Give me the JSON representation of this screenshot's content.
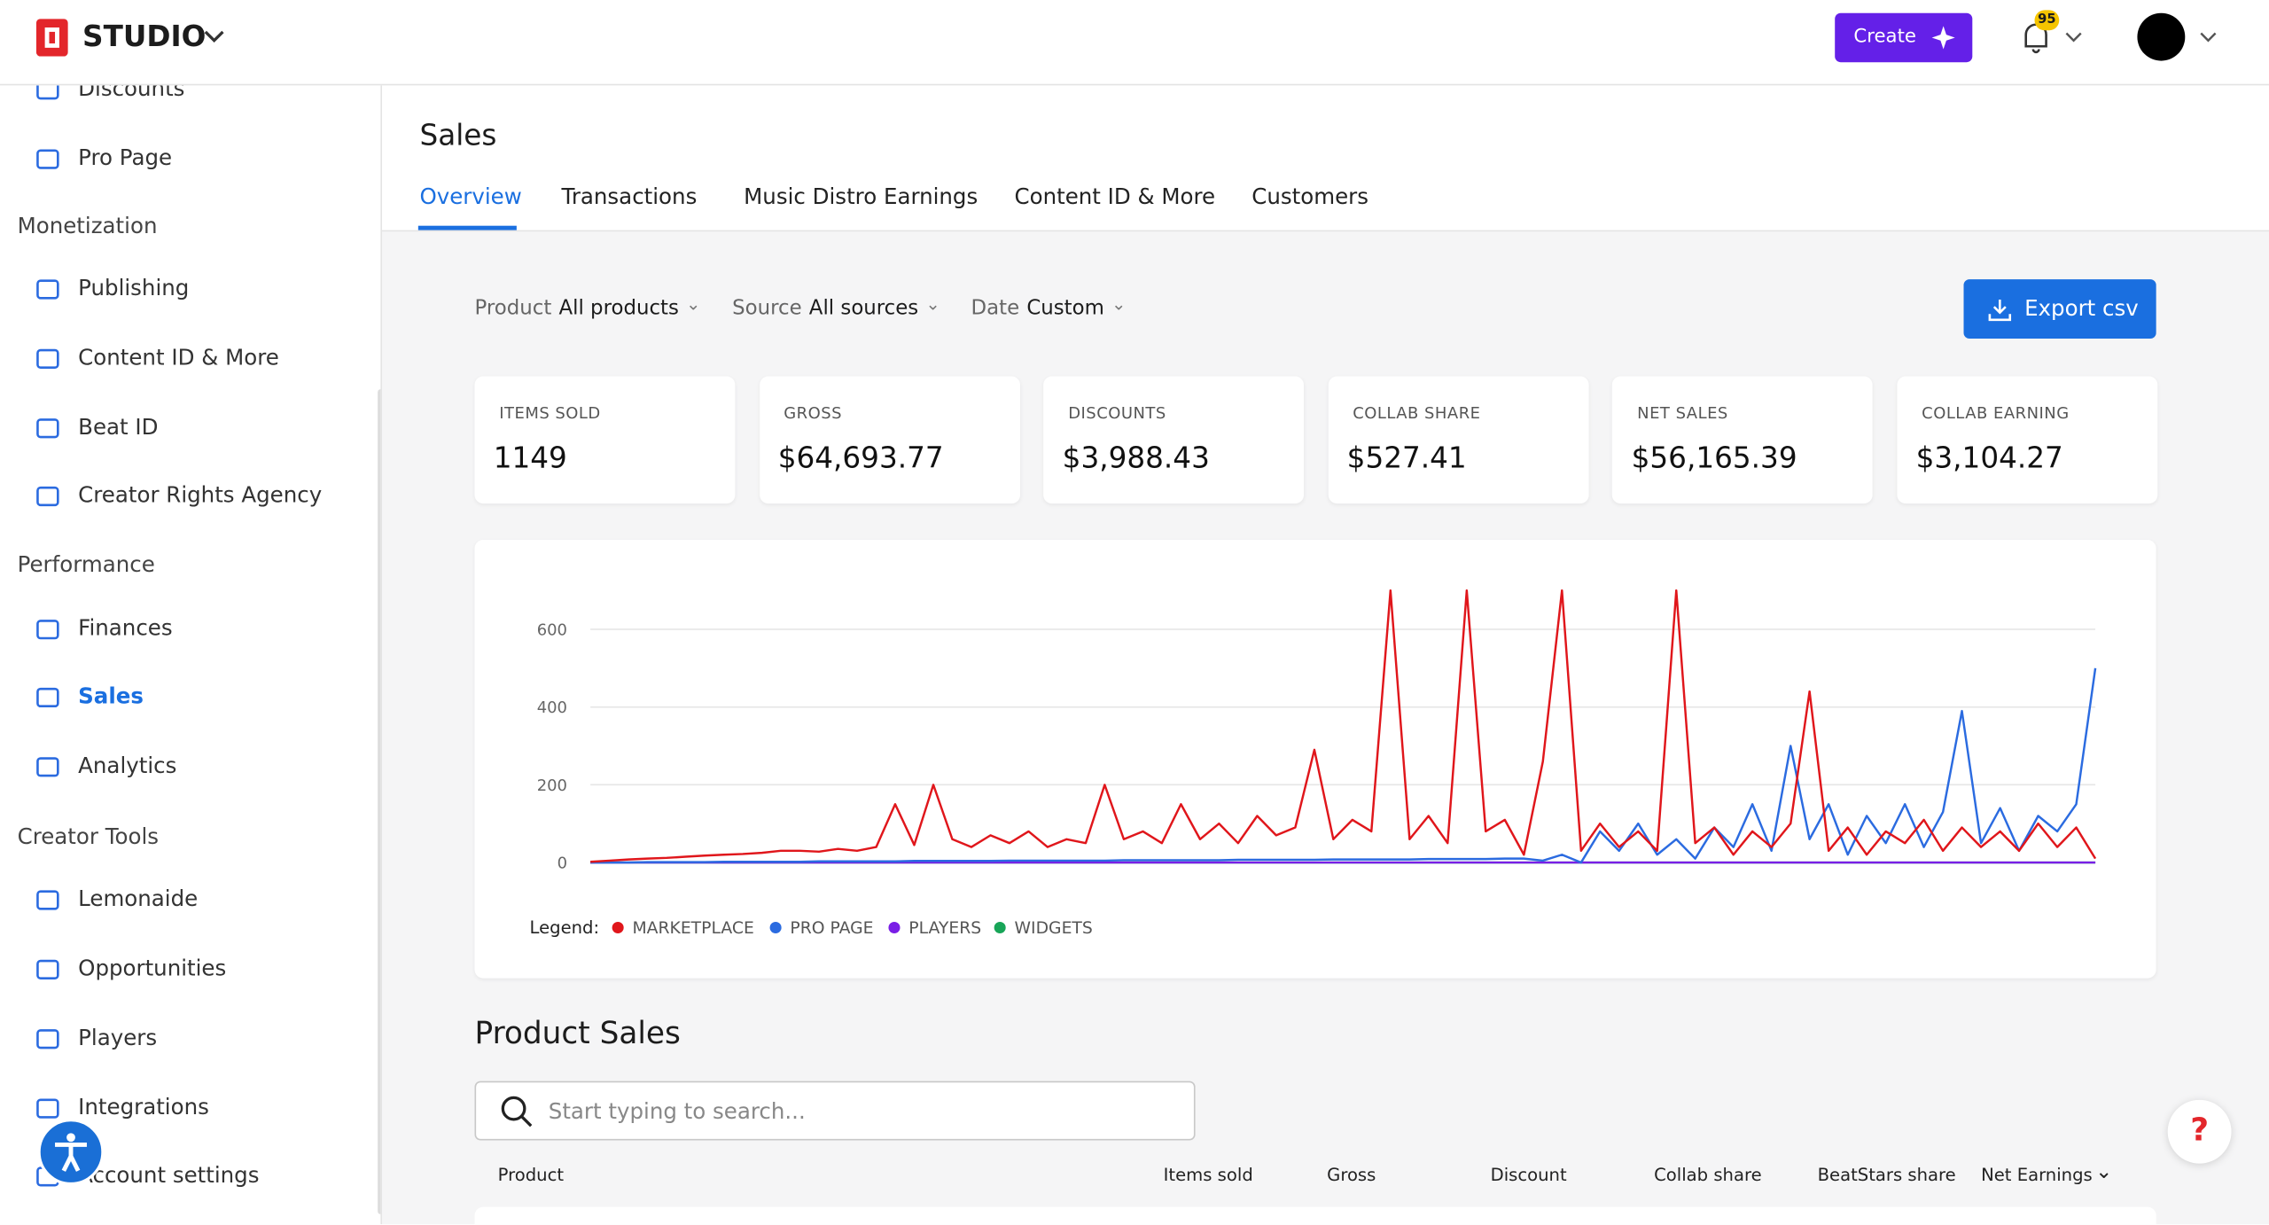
{
  "header": {
    "brand": "STUDIO",
    "create": "Create",
    "notifications": "95"
  },
  "sidebar": {
    "top": [
      "Discounts",
      "Pro Page"
    ],
    "sections": [
      {
        "title": "Monetization",
        "items": [
          "Publishing",
          "Content ID & More",
          "Beat ID",
          "Creator Rights Agency"
        ]
      },
      {
        "title": "Performance",
        "items": [
          "Finances",
          "Sales",
          "Analytics"
        ]
      },
      {
        "title": "Creator Tools",
        "items": [
          "Lemonaide",
          "Opportunities",
          "Players",
          "Integrations",
          "Account settings"
        ]
      }
    ]
  },
  "page": {
    "title": "Sales",
    "tabs": [
      "Overview",
      "Transactions",
      "Music Distro Earnings",
      "Content ID & More",
      "Customers"
    ],
    "filters": [
      {
        "label": "Product",
        "value": "All products"
      },
      {
        "label": "Source",
        "value": "All sources"
      },
      {
        "label": "Date",
        "value": "Custom"
      }
    ],
    "export": "Export csv"
  },
  "stats": [
    {
      "label": "ITEMS SOLD",
      "value": "1149"
    },
    {
      "label": "GROSS",
      "value": "$64,693.77"
    },
    {
      "label": "DISCOUNTS",
      "value": "$3,988.43"
    },
    {
      "label": "COLLAB SHARE",
      "value": "$527.41"
    },
    {
      "label": "NET SALES",
      "value": "$56,165.39"
    },
    {
      "label": "COLLAB EARNING",
      "value": "$3,104.27"
    }
  ],
  "chart_data": {
    "type": "line",
    "legend_title": "Legend:",
    "ylim": [
      0,
      700
    ],
    "yticks": [
      0,
      200,
      400,
      600
    ],
    "grid": true,
    "series": [
      {
        "name": "MARKETPLACE",
        "color": "#e0161b",
        "values": [
          2,
          5,
          8,
          10,
          12,
          15,
          18,
          20,
          22,
          25,
          30,
          30,
          28,
          35,
          30,
          40,
          150,
          45,
          200,
          60,
          40,
          70,
          50,
          80,
          40,
          60,
          50,
          200,
          60,
          80,
          50,
          150,
          60,
          100,
          50,
          120,
          70,
          90,
          290,
          60,
          110,
          80,
          700,
          60,
          120,
          50,
          700,
          80,
          110,
          20,
          260,
          700,
          30,
          100,
          40,
          80,
          30,
          700,
          50,
          90,
          20,
          80,
          40,
          100,
          440,
          30,
          90,
          20,
          80,
          50,
          110,
          30,
          90,
          40,
          80,
          30,
          100,
          40,
          90,
          10
        ]
      },
      {
        "name": "PRO PAGE",
        "color": "#2b6be0",
        "values": [
          0,
          0,
          0,
          1,
          1,
          1,
          1,
          2,
          2,
          2,
          2,
          2,
          3,
          3,
          3,
          3,
          3,
          4,
          4,
          4,
          4,
          4,
          5,
          5,
          5,
          5,
          5,
          5,
          6,
          6,
          6,
          6,
          6,
          6,
          7,
          7,
          7,
          7,
          7,
          8,
          8,
          8,
          8,
          8,
          9,
          9,
          9,
          9,
          10,
          10,
          5,
          20,
          0,
          80,
          30,
          100,
          20,
          60,
          10,
          90,
          40,
          150,
          30,
          300,
          60,
          150,
          20,
          120,
          50,
          150,
          40,
          130,
          390,
          50,
          140,
          30,
          120,
          80,
          150,
          500
        ]
      },
      {
        "name": "PLAYERS",
        "color": "#7a1ee6",
        "values": [
          0,
          0,
          0,
          0,
          0,
          0,
          0,
          0,
          0,
          0,
          0,
          0,
          0,
          0,
          0,
          0,
          0,
          0,
          0,
          0,
          0,
          0,
          0,
          0,
          0,
          0,
          0,
          0,
          0,
          0,
          0,
          0,
          0,
          0,
          0,
          0,
          0,
          0,
          0,
          0,
          0,
          0,
          0,
          0,
          0,
          0,
          0,
          0,
          0,
          0,
          0,
          0,
          0,
          0,
          0,
          0,
          0,
          0,
          0,
          0,
          0,
          0,
          0,
          0,
          0,
          0,
          0,
          0,
          0,
          0,
          0,
          0,
          0,
          0,
          0,
          0,
          0,
          0,
          0,
          0
        ]
      },
      {
        "name": "WIDGETS",
        "color": "#18a558",
        "values": [
          0,
          0,
          0,
          0,
          0,
          0,
          0,
          0,
          0,
          0,
          0,
          0,
          0,
          0,
          0,
          0,
          0,
          0,
          0,
          0,
          0,
          0,
          0,
          0,
          0,
          0,
          0,
          0,
          0,
          0,
          0,
          0,
          0,
          0,
          0,
          0,
          0,
          0,
          0,
          0,
          0,
          0,
          0,
          0,
          0,
          0,
          0,
          0,
          0,
          0,
          0,
          0,
          0,
          0,
          0,
          0,
          0,
          0,
          0,
          0,
          0,
          0,
          0,
          0,
          0,
          0,
          0,
          0,
          0,
          0,
          0,
          0,
          0,
          0,
          0,
          0,
          0,
          0,
          0,
          0
        ]
      }
    ]
  },
  "product_sales": {
    "title": "Product Sales",
    "search_placeholder": "Start typing to search...",
    "columns": [
      "Product",
      "Items sold",
      "Gross",
      "Discount",
      "Collab share",
      "BeatStars share",
      "Net Earnings"
    ]
  },
  "help": "?"
}
